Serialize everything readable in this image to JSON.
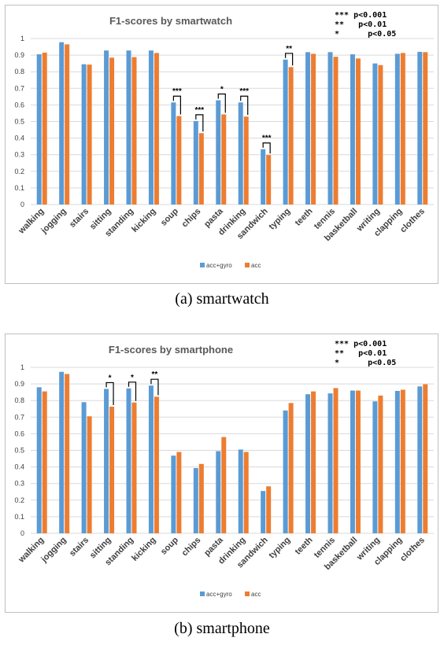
{
  "captions": [
    "(a) smartwatch",
    "(b) smartphone"
  ],
  "chart_data": [
    {
      "type": "bar",
      "title": "F1-scores by smartwatch",
      "ylim": [
        0,
        1
      ],
      "yticks": [
        "0",
        "0.1",
        "0.2",
        "0.3",
        "0.4",
        "0.5",
        "0.6",
        "0.7",
        "0.8",
        "0.9",
        "1"
      ],
      "grid": true,
      "legend_position": "bottom",
      "categories": [
        "walking",
        "jogging",
        "stairs",
        "sitting",
        "standing",
        "kicking",
        "soup",
        "chips",
        "pasta",
        "drinking",
        "sandwich",
        "typing",
        "teeth",
        "tennis",
        "basketball",
        "writing",
        "clapping",
        "clothes"
      ],
      "series": [
        {
          "name": "acc+gyro",
          "color": "#5b9bd5",
          "values": [
            0.905,
            0.978,
            0.845,
            0.928,
            0.928,
            0.928,
            0.615,
            0.503,
            0.628,
            0.615,
            0.333,
            0.873,
            0.918,
            0.918,
            0.905,
            0.85,
            0.908,
            0.92
          ]
        },
        {
          "name": "acc",
          "color": "#ed7d31",
          "values": [
            0.915,
            0.965,
            0.843,
            0.885,
            0.888,
            0.913,
            0.533,
            0.43,
            0.543,
            0.53,
            0.298,
            0.828,
            0.908,
            0.89,
            0.88,
            0.84,
            0.913,
            0.918
          ]
        }
      ],
      "significance_legend": [
        "*** p<0.001",
        "**   p<0.01",
        "*      p<0.05"
      ],
      "significance": [
        {
          "category": "soup",
          "stars": "***"
        },
        {
          "category": "chips",
          "stars": "***"
        },
        {
          "category": "pasta",
          "stars": "*"
        },
        {
          "category": "drinking",
          "stars": "***"
        },
        {
          "category": "sandwich",
          "stars": "***"
        },
        {
          "category": "typing",
          "stars": "**"
        }
      ]
    },
    {
      "type": "bar",
      "title": "F1-scores by smartphone",
      "ylim": [
        0,
        1
      ],
      "yticks": [
        "0",
        "0.1",
        "0.2",
        "0.3",
        "0.4",
        "0.5",
        "0.6",
        "0.7",
        "0.8",
        "0.9",
        "1"
      ],
      "grid": true,
      "legend_position": "bottom",
      "categories": [
        "walking",
        "jogging",
        "stairs",
        "sitting",
        "standing",
        "kicking",
        "soup",
        "chips",
        "pasta",
        "drinking",
        "sandwich",
        "typing",
        "teeth",
        "tennis",
        "basketball",
        "writing",
        "clapping",
        "clothes"
      ],
      "series": [
        {
          "name": "acc+gyro",
          "color": "#5b9bd5",
          "values": [
            0.88,
            0.973,
            0.79,
            0.87,
            0.873,
            0.89,
            0.468,
            0.393,
            0.495,
            0.505,
            0.255,
            0.74,
            0.838,
            0.843,
            0.86,
            0.795,
            0.858,
            0.885
          ]
        },
        {
          "name": "acc",
          "color": "#ed7d31",
          "values": [
            0.855,
            0.96,
            0.705,
            0.763,
            0.788,
            0.823,
            0.49,
            0.418,
            0.58,
            0.49,
            0.283,
            0.785,
            0.855,
            0.875,
            0.86,
            0.83,
            0.865,
            0.898
          ]
        }
      ],
      "significance_legend": [
        "*** p<0.001",
        "**   p<0.01",
        "*      p<0.05"
      ],
      "significance": [
        {
          "category": "sitting",
          "stars": "*"
        },
        {
          "category": "standing",
          "stars": "*"
        },
        {
          "category": "kicking",
          "stars": "**"
        }
      ]
    }
  ]
}
